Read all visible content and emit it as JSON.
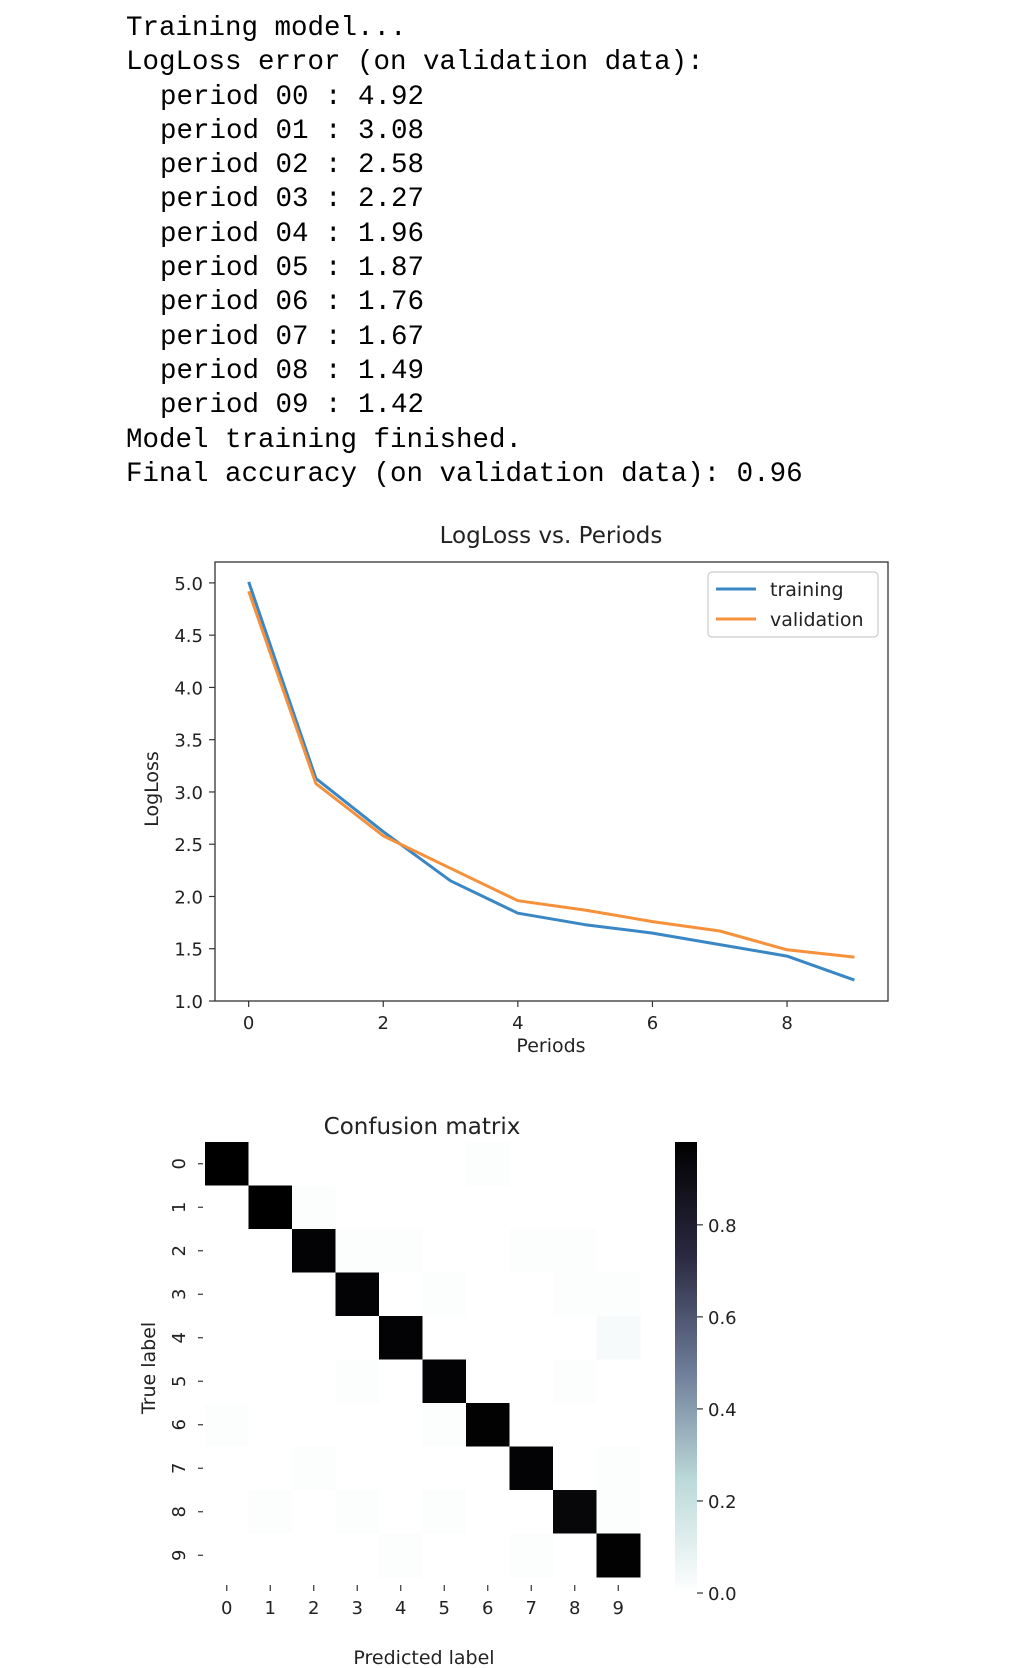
{
  "console": {
    "header": "Training model...",
    "subheader": "LogLoss error (on validation data):",
    "periods": [
      "period 00 : 4.92",
      "period 01 : 3.08",
      "period 02 : 2.58",
      "period 03 : 2.27",
      "period 04 : 1.96",
      "period 05 : 1.87",
      "period 06 : 1.76",
      "period 07 : 1.67",
      "period 08 : 1.49",
      "period 09 : 1.42"
    ],
    "finished": "Model training finished.",
    "final": "Final accuracy (on validation data): 0.96"
  },
  "chart_data": [
    {
      "type": "line",
      "title": "LogLoss vs. Periods",
      "xlabel": "Periods",
      "ylabel": "LogLoss",
      "x": [
        0,
        1,
        2,
        3,
        4,
        5,
        6,
        7,
        8,
        9
      ],
      "series": [
        {
          "name": "training",
          "color": "#3a87c5",
          "values": [
            5.01,
            3.13,
            2.62,
            2.15,
            1.84,
            1.73,
            1.65,
            1.54,
            1.43,
            1.2
          ]
        },
        {
          "name": "validation",
          "color": "#f5913a",
          "values": [
            4.92,
            3.08,
            2.58,
            2.27,
            1.96,
            1.87,
            1.76,
            1.67,
            1.49,
            1.42
          ]
        }
      ],
      "xlim": [
        -0.5,
        9.5
      ],
      "ylim": [
        1.0,
        5.2
      ],
      "xticks": [
        0,
        2,
        4,
        6,
        8
      ],
      "yticks": [
        1.0,
        1.5,
        2.0,
        2.5,
        3.0,
        3.5,
        4.0,
        4.5,
        5.0
      ],
      "xtick_labels": [
        "0",
        "2",
        "4",
        "6",
        "8"
      ],
      "ytick_labels": [
        "1.0",
        "1.5",
        "2.0",
        "2.5",
        "3.0",
        "3.5",
        "4.0",
        "4.5",
        "5.0"
      ],
      "legend": "top-right",
      "grid": false
    },
    {
      "type": "heatmap",
      "title": "Confusion matrix",
      "xlabel": "Predicted label",
      "ylabel": "True label",
      "x_categories": [
        "0",
        "1",
        "2",
        "3",
        "4",
        "5",
        "6",
        "7",
        "8",
        "9"
      ],
      "y_categories": [
        "0",
        "1",
        "2",
        "3",
        "4",
        "5",
        "6",
        "7",
        "8",
        "9"
      ],
      "matrix": [
        [
          0.98,
          0.0,
          0.0,
          0.0,
          0.0,
          0.0,
          0.01,
          0.0,
          0.0,
          0.0
        ],
        [
          0.0,
          0.98,
          0.01,
          0.0,
          0.0,
          0.0,
          0.0,
          0.0,
          0.0,
          0.0
        ],
        [
          0.0,
          0.0,
          0.96,
          0.01,
          0.01,
          0.0,
          0.0,
          0.01,
          0.01,
          0.0
        ],
        [
          0.0,
          0.0,
          0.0,
          0.96,
          0.0,
          0.01,
          0.0,
          0.0,
          0.01,
          0.01
        ],
        [
          0.0,
          0.0,
          0.0,
          0.0,
          0.96,
          0.0,
          0.0,
          0.0,
          0.0,
          0.03
        ],
        [
          0.0,
          0.0,
          0.0,
          0.01,
          0.0,
          0.96,
          0.0,
          0.0,
          0.01,
          0.0
        ],
        [
          0.01,
          0.0,
          0.0,
          0.0,
          0.0,
          0.01,
          0.97,
          0.0,
          0.0,
          0.0
        ],
        [
          0.0,
          0.0,
          0.01,
          0.0,
          0.0,
          0.0,
          0.0,
          0.96,
          0.0,
          0.01
        ],
        [
          0.0,
          0.01,
          0.0,
          0.01,
          0.0,
          0.01,
          0.0,
          0.0,
          0.94,
          0.01
        ],
        [
          0.0,
          0.0,
          0.0,
          0.0,
          0.01,
          0.0,
          0.0,
          0.01,
          0.0,
          0.97
        ]
      ],
      "colorbar_ticks": [
        0.0,
        0.2,
        0.4,
        0.6,
        0.8
      ],
      "colorbar_tick_labels": [
        "0.0",
        "0.2",
        "0.4",
        "0.6",
        "0.8"
      ],
      "vmin": 0.0,
      "vmax": 0.98,
      "colormap": [
        "#ffffff",
        "#bcd9d9",
        "#6b7a96",
        "#2a2840",
        "#000000"
      ]
    }
  ]
}
